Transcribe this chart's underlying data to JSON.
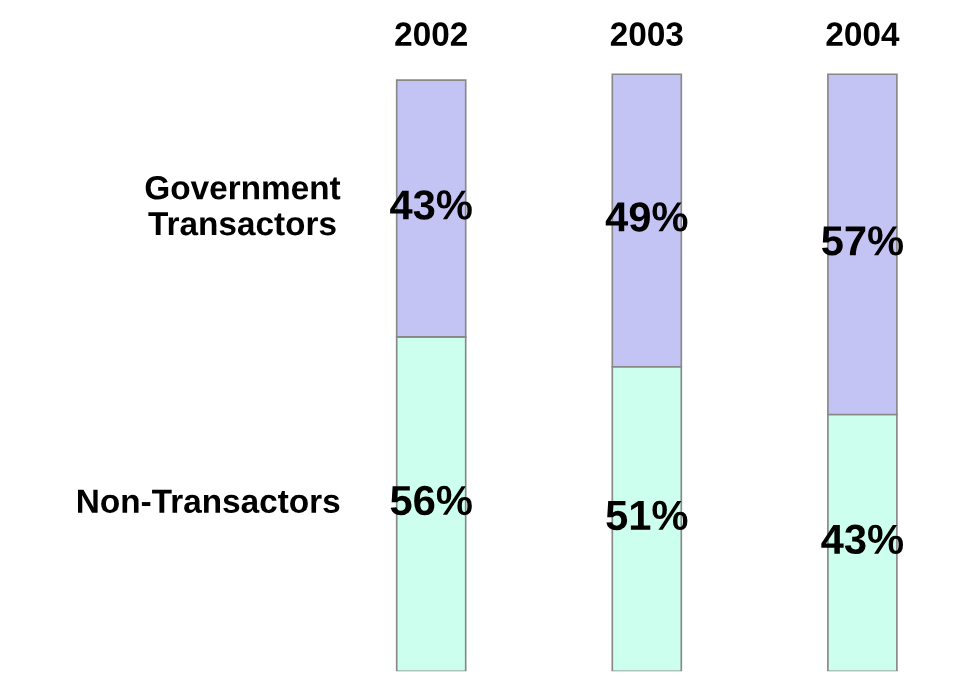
{
  "chart_data": {
    "type": "bar",
    "stacked": true,
    "categories": [
      "2002",
      "2003",
      "2004"
    ],
    "series": [
      {
        "name": "Non-Transactors",
        "color": "#ccffee",
        "values": [
          56,
          51,
          43
        ],
        "value_labels": [
          "56%",
          "51%",
          "43%"
        ]
      },
      {
        "name": "Government Transactors",
        "color": "#c4c4f4",
        "values": [
          43,
          49,
          57
        ],
        "value_labels": [
          "43%",
          "49%",
          "57%"
        ]
      }
    ],
    "legend": false
  }
}
